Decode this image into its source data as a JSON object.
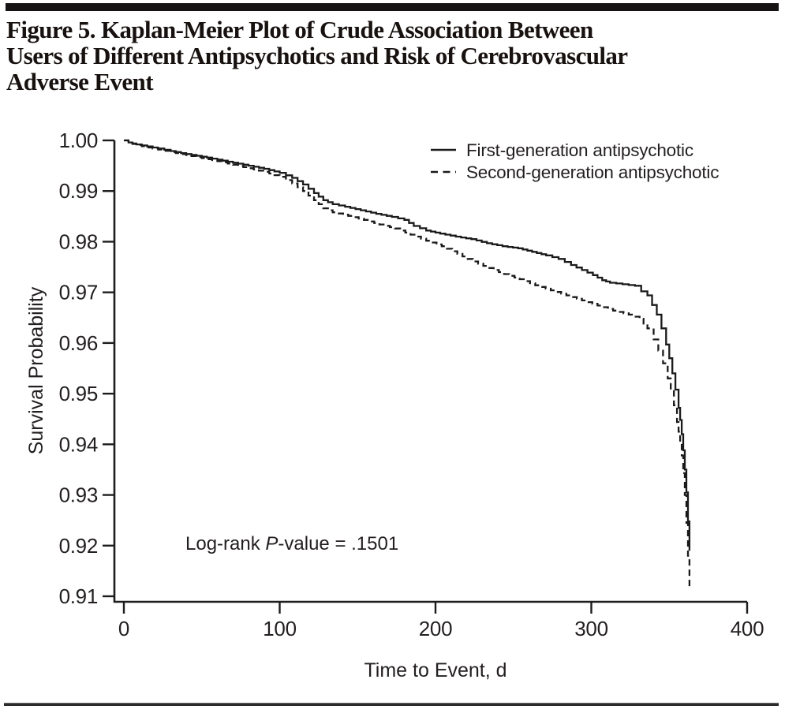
{
  "figure": {
    "title_lines": [
      "Figure 5. Kaplan-Meier Plot of Crude Association Between",
      "Users of Different Antipsychotics and Risk of Cerebrovascular",
      "Adverse Event"
    ]
  },
  "annotation": {
    "prefix": "Log-rank ",
    "italic": "P",
    "suffix": "-value = .1501"
  },
  "colors": {
    "ink": "#231f20",
    "curve": "#1a1a1a",
    "rule": "#171214"
  },
  "chart_data": {
    "type": "line",
    "subtype": "kaplan-meier-step",
    "title": "Figure 5. Kaplan-Meier Plot of Crude Association Between Users of Different Antipsychotics and Risk of Cerebrovascular Adverse Event",
    "xlabel": "Time to Event, d",
    "ylabel": "Survival Probability",
    "xlim": [
      0,
      400
    ],
    "ylim": [
      0.91,
      1.0
    ],
    "x_ticks": [
      0,
      100,
      200,
      300,
      400
    ],
    "y_ticks": [
      "1.00",
      "0.99",
      "0.98",
      "0.97",
      "0.96",
      "0.95",
      "0.94",
      "0.93",
      "0.92",
      "0.91"
    ],
    "grid": false,
    "legend_position": "top-right-inside",
    "annotation_text": "Log-rank P-value = .1501",
    "series": [
      {
        "name": "First-generation antipsychotic",
        "line_style": "solid",
        "color": "#1a1a1a",
        "points": [
          [
            0,
            1.0
          ],
          [
            3,
            0.9996
          ],
          [
            8,
            0.9992
          ],
          [
            15,
            0.9988
          ],
          [
            22,
            0.9984
          ],
          [
            30,
            0.9979
          ],
          [
            40,
            0.9973
          ],
          [
            50,
            0.9968
          ],
          [
            60,
            0.9962
          ],
          [
            70,
            0.9956
          ],
          [
            80,
            0.995
          ],
          [
            90,
            0.9944
          ],
          [
            100,
            0.9936
          ],
          [
            108,
            0.9926
          ],
          [
            115,
            0.9913
          ],
          [
            122,
            0.9896
          ],
          [
            128,
            0.9882
          ],
          [
            134,
            0.9874
          ],
          [
            142,
            0.9869
          ],
          [
            152,
            0.9862
          ],
          [
            162,
            0.9855
          ],
          [
            172,
            0.9849
          ],
          [
            180,
            0.9843
          ],
          [
            186,
            0.9831
          ],
          [
            194,
            0.9822
          ],
          [
            203,
            0.9816
          ],
          [
            213,
            0.981
          ],
          [
            223,
            0.9805
          ],
          [
            233,
            0.9797
          ],
          [
            243,
            0.9791
          ],
          [
            253,
            0.9787
          ],
          [
            262,
            0.978
          ],
          [
            271,
            0.9773
          ],
          [
            279,
            0.9766
          ],
          [
            287,
            0.9754
          ],
          [
            294,
            0.9744
          ],
          [
            301,
            0.9734
          ],
          [
            307,
            0.9724
          ],
          [
            312,
            0.9719
          ],
          [
            320,
            0.9716
          ],
          [
            328,
            0.9713
          ],
          [
            332,
            0.9702
          ],
          [
            336,
            0.9694
          ],
          [
            339,
            0.9675
          ],
          [
            342,
            0.9656
          ],
          [
            345,
            0.9629
          ],
          [
            348,
            0.9597
          ],
          [
            350,
            0.957
          ],
          [
            352,
            0.954
          ],
          [
            354,
            0.9508
          ],
          [
            356,
            0.9472
          ],
          [
            357,
            0.9448
          ],
          [
            358,
            0.942
          ],
          [
            359,
            0.9388
          ],
          [
            360,
            0.935
          ],
          [
            361,
            0.9305
          ],
          [
            362,
            0.9248
          ],
          [
            363,
            0.919
          ]
        ]
      },
      {
        "name": "Second-generation antipsychotic",
        "line_style": "dashed",
        "color": "#1a1a1a",
        "points": [
          [
            0,
            1.0
          ],
          [
            3,
            0.9995
          ],
          [
            8,
            0.9991
          ],
          [
            15,
            0.9986
          ],
          [
            22,
            0.9982
          ],
          [
            30,
            0.9977
          ],
          [
            40,
            0.9971
          ],
          [
            50,
            0.9965
          ],
          [
            60,
            0.9959
          ],
          [
            70,
            0.9952
          ],
          [
            80,
            0.9945
          ],
          [
            90,
            0.9938
          ],
          [
            100,
            0.9928
          ],
          [
            108,
            0.9915
          ],
          [
            115,
            0.99
          ],
          [
            122,
            0.9882
          ],
          [
            128,
            0.9866
          ],
          [
            134,
            0.9858
          ],
          [
            144,
            0.9851
          ],
          [
            154,
            0.9843
          ],
          [
            164,
            0.9834
          ],
          [
            174,
            0.9826
          ],
          [
            184,
            0.9814
          ],
          [
            194,
            0.9802
          ],
          [
            204,
            0.9791
          ],
          [
            214,
            0.9776
          ],
          [
            224,
            0.9761
          ],
          [
            234,
            0.9748
          ],
          [
            244,
            0.9736
          ],
          [
            254,
            0.9726
          ],
          [
            264,
            0.9714
          ],
          [
            274,
            0.9704
          ],
          [
            284,
            0.9694
          ],
          [
            294,
            0.9684
          ],
          [
            304,
            0.9674
          ],
          [
            314,
            0.9664
          ],
          [
            324,
            0.9656
          ],
          [
            331,
            0.9648
          ],
          [
            336,
            0.9629
          ],
          [
            340,
            0.9607
          ],
          [
            343,
            0.9585
          ],
          [
            346,
            0.956
          ],
          [
            349,
            0.953
          ],
          [
            351,
            0.9505
          ],
          [
            353,
            0.9477
          ],
          [
            355,
            0.9444
          ],
          [
            356,
            0.9425
          ],
          [
            357,
            0.9404
          ],
          [
            358,
            0.9378
          ],
          [
            359,
            0.9343
          ],
          [
            360,
            0.93
          ],
          [
            361,
            0.9245
          ],
          [
            362,
            0.918
          ],
          [
            363,
            0.9115
          ]
        ]
      }
    ]
  }
}
